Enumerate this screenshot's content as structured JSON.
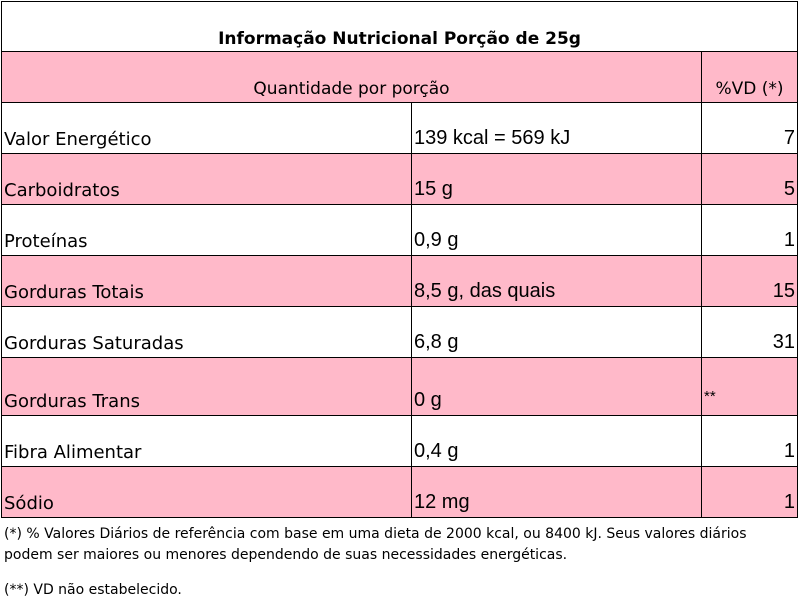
{
  "title": "Informação Nutricional Porção de 25g",
  "table": {
    "header": [
      "Quantidade por porção",
      "%VD (*)"
    ],
    "rows": [
      [
        "Valor Energético",
        "139 kcal = 569 kJ",
        "7"
      ],
      [
        "Carboidratos",
        "15 g",
        "5"
      ],
      [
        "Proteínas",
        "0,9 g",
        "1"
      ],
      [
        "Gorduras Totais",
        "8,5 g, das quais",
        "15"
      ],
      [
        "Gorduras Saturadas",
        "6,8 g",
        "31"
      ],
      [
        "Gorduras Trans",
        "0 g",
        "**"
      ],
      [
        "Fibra Alimentar",
        "0,4 g",
        "1"
      ],
      [
        "Sódio",
        "12 mg",
        "1"
      ]
    ]
  },
  "footnotes": [
    "(*) % Valores Diários de referência com base em uma dieta de 2000 kcal,  ou 8400 kJ. Seus valores diários podem ser maiores ou menores  dependendo de suas necessidades energéticas.",
    "(**) VD não estabelecido."
  ]
}
